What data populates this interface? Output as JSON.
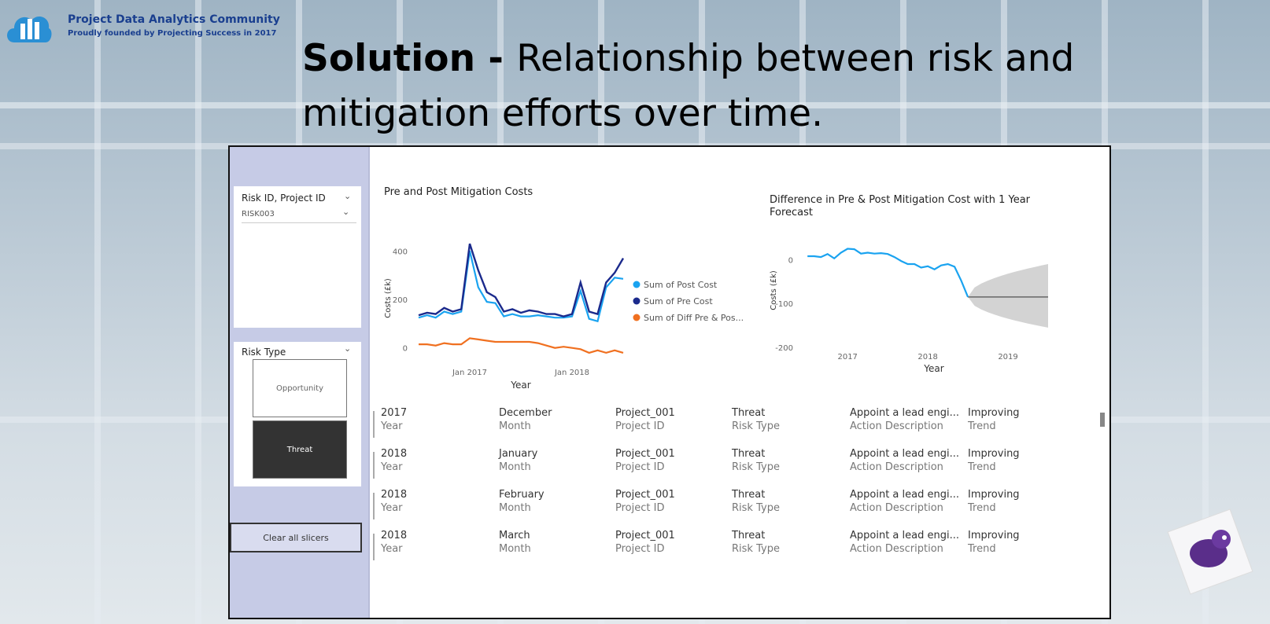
{
  "brand": {
    "title": "Project Data Analytics Community",
    "subtitle": "Proudly founded by Projecting Success in 2017"
  },
  "slide": {
    "title_bold": "Solution - ",
    "title_rest": "Relationship between risk and mitigation efforts over time."
  },
  "sidebar": {
    "slicer1": {
      "title": "Risk ID, Project ID",
      "value": "RISK003"
    },
    "slicer2": {
      "title": "Risk Type",
      "options": [
        "Opportunity",
        "Threat"
      ],
      "selected": "Threat"
    },
    "clear_button": "Clear all slicers"
  },
  "colors": {
    "post": "#1aa3f0",
    "pre": "#1b2a8c",
    "diff": "#f07020",
    "forecast_band": "#d3d3d3",
    "forecast_line": "#666666"
  },
  "chart_data": [
    {
      "type": "line",
      "title": "Pre and Post Mitigation Costs",
      "xlabel": "Year",
      "ylabel": "Costs (£k)",
      "x_ticks": [
        "Jan 2017",
        "Jan 2018"
      ],
      "y_ticks": [
        0,
        200,
        400
      ],
      "legend": "right",
      "x": [
        "2016-07",
        "2016-08",
        "2016-09",
        "2016-10",
        "2016-11",
        "2016-12",
        "2017-01",
        "2017-02",
        "2017-03",
        "2017-04",
        "2017-05",
        "2017-06",
        "2017-07",
        "2017-08",
        "2017-09",
        "2017-10",
        "2017-11",
        "2017-12",
        "2018-01",
        "2018-02",
        "2018-03",
        "2018-04",
        "2018-05",
        "2018-06",
        "2018-07"
      ],
      "series": [
        {
          "name": "Sum of Post Cost",
          "values": [
            125,
            135,
            125,
            150,
            140,
            150,
            400,
            250,
            190,
            185,
            130,
            140,
            130,
            130,
            135,
            130,
            125,
            125,
            130,
            235,
            120,
            110,
            250,
            290,
            285
          ]
        },
        {
          "name": "Sum of Pre Cost",
          "values": [
            135,
            145,
            140,
            165,
            150,
            160,
            430,
            320,
            230,
            210,
            150,
            160,
            145,
            155,
            150,
            140,
            140,
            130,
            140,
            270,
            150,
            140,
            270,
            310,
            370
          ]
        },
        {
          "name": "Sum of Diff Pre & Pos...",
          "values": [
            15,
            15,
            10,
            20,
            15,
            15,
            40,
            35,
            30,
            25,
            25,
            25,
            25,
            25,
            20,
            10,
            0,
            5,
            0,
            -5,
            -20,
            -10,
            -20,
            -10,
            -20
          ]
        }
      ]
    },
    {
      "type": "line",
      "title": "Difference in Pre & Post Mitigation Cost with 1 Year Forecast",
      "xlabel": "Year",
      "ylabel": "Costs (£k)",
      "x_ticks": [
        "2017",
        "2018",
        "2019"
      ],
      "y_ticks": [
        0,
        -100,
        -200
      ],
      "x": [
        "2016-07",
        "2016-08",
        "2016-09",
        "2016-10",
        "2016-11",
        "2016-12",
        "2017-01",
        "2017-02",
        "2017-03",
        "2017-04",
        "2017-05",
        "2017-06",
        "2017-07",
        "2017-08",
        "2017-09",
        "2017-10",
        "2017-11",
        "2017-12",
        "2018-01",
        "2018-02",
        "2018-03",
        "2018-04",
        "2018-05",
        "2018-06",
        "2018-07"
      ],
      "series": [
        {
          "name": "Difference",
          "values": [
            8,
            8,
            6,
            13,
            3,
            16,
            25,
            24,
            14,
            16,
            14,
            15,
            13,
            6,
            -3,
            -10,
            -10,
            -18,
            -15,
            -22,
            -13,
            -10,
            -16,
            -48,
            -85
          ]
        }
      ],
      "forecast": {
        "x": [
          "2018-07",
          "2019-07"
        ],
        "value": -85,
        "lower": [
          -85,
          -155
        ],
        "upper": [
          -85,
          -10
        ]
      }
    }
  ],
  "table": {
    "labels": [
      "Year",
      "Month",
      "Project ID",
      "Risk Type",
      "Action Description",
      "Trend"
    ],
    "rows": [
      [
        "2017",
        "December",
        "Project_001",
        "Threat",
        "Appoint a lead engi...",
        "Improving"
      ],
      [
        "2018",
        "January",
        "Project_001",
        "Threat",
        "Appoint a lead engi...",
        "Improving"
      ],
      [
        "2018",
        "February",
        "Project_001",
        "Threat",
        "Appoint a lead engi...",
        "Improving"
      ],
      [
        "2018",
        "March",
        "Project_001",
        "Threat",
        "Appoint a lead engi...",
        "Improving"
      ]
    ]
  }
}
